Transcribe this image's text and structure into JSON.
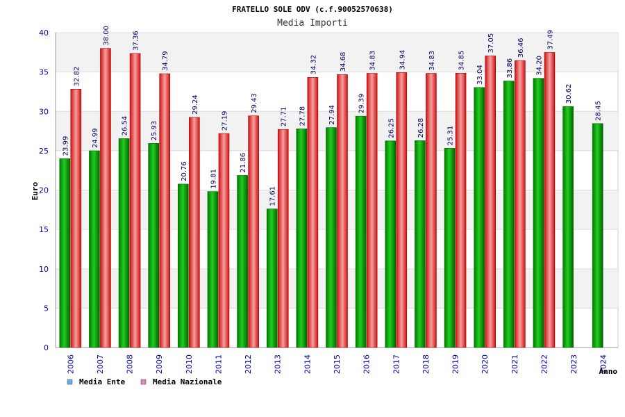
{
  "chart_data": {
    "type": "bar",
    "title": "FRATELLO SOLE ODV (c.f.90052570638)",
    "subtitle": "Media Importi",
    "xlabel": "Anno",
    "ylabel": "Euro",
    "ylim": [
      0,
      40
    ],
    "yticks": [
      0,
      5,
      10,
      15,
      20,
      25,
      30,
      35,
      40
    ],
    "categories": [
      "2006",
      "2007",
      "2008",
      "2009",
      "2010",
      "2011",
      "2012",
      "2013",
      "2014",
      "2015",
      "2016",
      "2017",
      "2018",
      "2019",
      "2020",
      "2021",
      "2022",
      "2023",
      "2024"
    ],
    "series": [
      {
        "name": "Media Ente",
        "color": "#00aa00",
        "values": [
          23.99,
          24.99,
          26.54,
          25.93,
          20.76,
          19.81,
          21.86,
          17.61,
          27.78,
          27.94,
          29.39,
          26.25,
          26.28,
          25.31,
          33.04,
          33.86,
          34.2,
          30.62,
          28.45
        ],
        "labels": [
          "23.99",
          "24.99",
          "26.54",
          "25.93",
          "20.76",
          "19.81",
          "21.86",
          "17.61",
          "27.78",
          "27.94",
          "29.39",
          "26.25",
          "26.28",
          "25.31",
          "33.04",
          "33.86",
          "34.20",
          "30.62",
          "28.45"
        ]
      },
      {
        "name": "Media Nazionale",
        "color": "#ee2222",
        "values": [
          32.82,
          38.0,
          37.36,
          34.79,
          29.24,
          27.19,
          29.43,
          27.71,
          34.32,
          34.68,
          34.83,
          34.94,
          34.83,
          34.85,
          37.05,
          36.46,
          37.49,
          null,
          null
        ],
        "labels": [
          "32.82",
          "38.00",
          "37.36",
          "34.79",
          "29.24",
          "27.19",
          "29.43",
          "27.71",
          "34.32",
          "34.68",
          "34.83",
          "34.94",
          "34.83",
          "34.85",
          "37.05",
          "36.46",
          "37.49",
          null,
          null
        ]
      }
    ],
    "legend": [
      {
        "label": "Media Ente",
        "color": "#66aaee"
      },
      {
        "label": "Media Nazionale",
        "color": "#dd88bb"
      }
    ],
    "legend_position": "bottom-left",
    "grid": true
  }
}
